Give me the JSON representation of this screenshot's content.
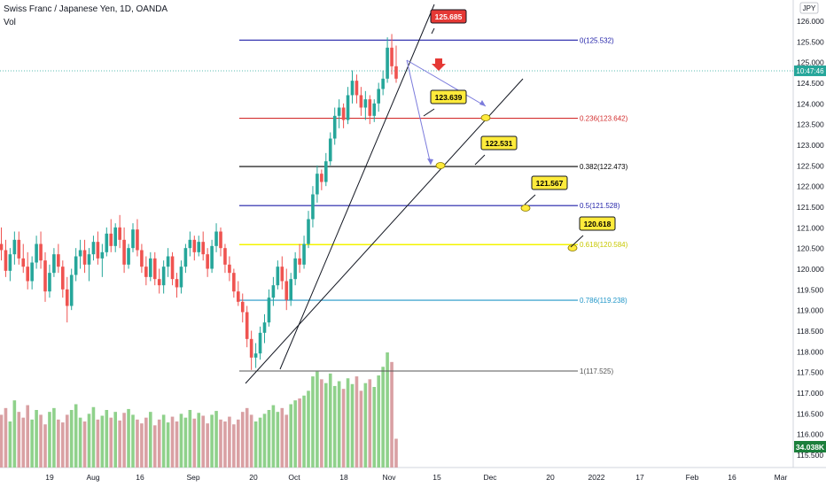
{
  "header": {
    "symbol_title": "Swiss Franc / Japanese Yen, 1D, OANDA",
    "volume_label": "Vol"
  },
  "axis": {
    "currency_label": "JPY",
    "current_time": "10:47:46",
    "volume_value": "34.038K"
  },
  "colors": {
    "up": "#26a69a",
    "down": "#ef5350",
    "vol_up": "#8fd18b",
    "vol_down": "#d9a0a3",
    "fib_0": "#1f1fa8",
    "fib_236": "#d32f2f",
    "fib_382": "#000000",
    "fib_5": "#1f1fa8",
    "fib_618": "#f4f400",
    "fib_786": "#2196c8",
    "fib_1": "#555555",
    "arrow": "#e53935",
    "callout_red": "#e53935",
    "callout_yellow": "#ffeb3b",
    "projection": "#7b7bdc"
  },
  "chart_data": {
    "type": "candlestick",
    "ylim": [
      115.35,
      126.3
    ],
    "y_ticks": [
      "126.000",
      "125.500",
      "125.000",
      "124.500",
      "124.000",
      "123.500",
      "123.000",
      "122.500",
      "122.000",
      "121.500",
      "121.000",
      "120.500",
      "120.000",
      "119.500",
      "119.000",
      "118.500",
      "118.000",
      "117.500",
      "117.000",
      "116.500",
      "116.000",
      "115.500"
    ],
    "x_ticks": [
      "19",
      "Aug",
      "16",
      "Sep",
      "20",
      "Oct",
      "18",
      "Nov",
      "15",
      "Dec",
      "20",
      "2022",
      "17",
      "Feb",
      "16",
      "Mar"
    ],
    "fib_levels": [
      {
        "label": "0(125.532)",
        "price": 125.532
      },
      {
        "label": "0.236(123.642)",
        "price": 123.642
      },
      {
        "label": "0.382(122.473)",
        "price": 122.473
      },
      {
        "label": "0.5(121.528)",
        "price": 121.528
      },
      {
        "label": "0.618(120.584)",
        "price": 120.584
      },
      {
        "label": "0.786(119.238)",
        "price": 119.238
      },
      {
        "label": "1(117.525)",
        "price": 117.525
      }
    ],
    "callouts": [
      "125.685",
      "123.639",
      "122.531",
      "121.567",
      "120.618"
    ],
    "candles": [
      {
        "o": 120.6,
        "h": 121.0,
        "l": 120.2,
        "c": 120.45
      },
      {
        "o": 120.45,
        "h": 120.7,
        "l": 119.8,
        "c": 119.95
      },
      {
        "o": 119.95,
        "h": 120.5,
        "l": 119.7,
        "c": 120.35
      },
      {
        "o": 120.35,
        "h": 120.9,
        "l": 120.1,
        "c": 120.7
      },
      {
        "o": 120.7,
        "h": 120.9,
        "l": 120.1,
        "c": 120.25
      },
      {
        "o": 120.25,
        "h": 120.6,
        "l": 119.9,
        "c": 120.05
      },
      {
        "o": 120.05,
        "h": 120.4,
        "l": 119.5,
        "c": 119.7
      },
      {
        "o": 119.7,
        "h": 120.3,
        "l": 119.5,
        "c": 120.15
      },
      {
        "o": 120.15,
        "h": 120.8,
        "l": 120.0,
        "c": 120.6
      },
      {
        "o": 120.6,
        "h": 120.9,
        "l": 120.0,
        "c": 120.2
      },
      {
        "o": 120.2,
        "h": 120.4,
        "l": 119.2,
        "c": 119.45
      },
      {
        "o": 119.45,
        "h": 120.1,
        "l": 119.3,
        "c": 119.9
      },
      {
        "o": 119.9,
        "h": 120.5,
        "l": 119.8,
        "c": 120.35
      },
      {
        "o": 120.35,
        "h": 120.6,
        "l": 119.9,
        "c": 120.05
      },
      {
        "o": 120.05,
        "h": 120.2,
        "l": 119.3,
        "c": 119.5
      },
      {
        "o": 119.5,
        "h": 119.8,
        "l": 118.7,
        "c": 119.1
      },
      {
        "o": 119.1,
        "h": 120.0,
        "l": 119.0,
        "c": 119.85
      },
      {
        "o": 119.85,
        "h": 120.5,
        "l": 119.7,
        "c": 120.3
      },
      {
        "o": 120.3,
        "h": 120.7,
        "l": 120.0,
        "c": 120.45
      },
      {
        "o": 120.45,
        "h": 120.7,
        "l": 119.9,
        "c": 120.1
      },
      {
        "o": 120.1,
        "h": 120.5,
        "l": 119.7,
        "c": 120.35
      },
      {
        "o": 120.35,
        "h": 120.8,
        "l": 120.2,
        "c": 120.65
      },
      {
        "o": 120.65,
        "h": 120.9,
        "l": 120.1,
        "c": 120.25
      },
      {
        "o": 120.25,
        "h": 120.6,
        "l": 119.8,
        "c": 120.4
      },
      {
        "o": 120.4,
        "h": 121.0,
        "l": 120.3,
        "c": 120.85
      },
      {
        "o": 120.85,
        "h": 121.2,
        "l": 120.4,
        "c": 120.55
      },
      {
        "o": 120.55,
        "h": 121.1,
        "l": 120.4,
        "c": 121.0
      },
      {
        "o": 121.0,
        "h": 121.3,
        "l": 120.5,
        "c": 120.7
      },
      {
        "o": 120.7,
        "h": 121.0,
        "l": 119.9,
        "c": 120.1
      },
      {
        "o": 120.1,
        "h": 120.6,
        "l": 120.0,
        "c": 120.5
      },
      {
        "o": 120.5,
        "h": 121.1,
        "l": 120.4,
        "c": 120.95
      },
      {
        "o": 120.95,
        "h": 121.2,
        "l": 120.3,
        "c": 120.45
      },
      {
        "o": 120.45,
        "h": 120.6,
        "l": 119.9,
        "c": 120.05
      },
      {
        "o": 120.05,
        "h": 120.3,
        "l": 119.6,
        "c": 119.8
      },
      {
        "o": 119.8,
        "h": 120.4,
        "l": 119.7,
        "c": 120.25
      },
      {
        "o": 120.25,
        "h": 120.4,
        "l": 119.6,
        "c": 119.75
      },
      {
        "o": 119.75,
        "h": 120.0,
        "l": 119.4,
        "c": 119.6
      },
      {
        "o": 119.6,
        "h": 120.2,
        "l": 119.4,
        "c": 120.05
      },
      {
        "o": 120.05,
        "h": 120.5,
        "l": 119.8,
        "c": 120.3
      },
      {
        "o": 120.3,
        "h": 120.4,
        "l": 119.6,
        "c": 119.75
      },
      {
        "o": 119.75,
        "h": 119.9,
        "l": 119.3,
        "c": 119.55
      },
      {
        "o": 119.55,
        "h": 120.2,
        "l": 119.4,
        "c": 120.05
      },
      {
        "o": 120.05,
        "h": 120.6,
        "l": 119.9,
        "c": 120.5
      },
      {
        "o": 120.5,
        "h": 120.9,
        "l": 120.3,
        "c": 120.7
      },
      {
        "o": 120.7,
        "h": 120.8,
        "l": 120.2,
        "c": 120.4
      },
      {
        "o": 120.4,
        "h": 120.8,
        "l": 120.3,
        "c": 120.65
      },
      {
        "o": 120.65,
        "h": 120.9,
        "l": 120.2,
        "c": 120.35
      },
      {
        "o": 120.35,
        "h": 120.5,
        "l": 119.8,
        "c": 120.0
      },
      {
        "o": 120.0,
        "h": 120.7,
        "l": 119.9,
        "c": 120.55
      },
      {
        "o": 120.55,
        "h": 121.1,
        "l": 120.4,
        "c": 120.9
      },
      {
        "o": 120.9,
        "h": 121.0,
        "l": 120.3,
        "c": 120.5
      },
      {
        "o": 120.5,
        "h": 120.6,
        "l": 119.9,
        "c": 120.1
      },
      {
        "o": 120.1,
        "h": 120.3,
        "l": 119.7,
        "c": 119.9
      },
      {
        "o": 119.9,
        "h": 120.0,
        "l": 119.3,
        "c": 119.45
      },
      {
        "o": 119.45,
        "h": 119.7,
        "l": 119.1,
        "c": 119.2
      },
      {
        "o": 119.2,
        "h": 119.4,
        "l": 118.7,
        "c": 118.95
      },
      {
        "o": 118.95,
        "h": 119.1,
        "l": 118.1,
        "c": 118.3
      },
      {
        "o": 118.3,
        "h": 118.5,
        "l": 117.55,
        "c": 117.85
      },
      {
        "o": 117.85,
        "h": 118.2,
        "l": 117.6,
        "c": 117.95
      },
      {
        "o": 117.95,
        "h": 118.6,
        "l": 117.8,
        "c": 118.45
      },
      {
        "o": 118.45,
        "h": 118.9,
        "l": 118.2,
        "c": 118.7
      },
      {
        "o": 118.7,
        "h": 119.5,
        "l": 118.6,
        "c": 119.3
      },
      {
        "o": 119.3,
        "h": 119.8,
        "l": 119.1,
        "c": 119.6
      },
      {
        "o": 119.6,
        "h": 120.2,
        "l": 119.5,
        "c": 120.05
      },
      {
        "o": 120.05,
        "h": 120.3,
        "l": 119.5,
        "c": 119.7
      },
      {
        "o": 119.7,
        "h": 120.0,
        "l": 119.0,
        "c": 119.25
      },
      {
        "o": 119.25,
        "h": 119.9,
        "l": 119.1,
        "c": 119.75
      },
      {
        "o": 119.75,
        "h": 120.4,
        "l": 119.6,
        "c": 120.25
      },
      {
        "o": 120.25,
        "h": 120.6,
        "l": 119.9,
        "c": 120.1
      },
      {
        "o": 120.1,
        "h": 120.8,
        "l": 120.0,
        "c": 120.6
      },
      {
        "o": 120.6,
        "h": 121.4,
        "l": 120.5,
        "c": 121.2
      },
      {
        "o": 121.2,
        "h": 122.0,
        "l": 121.0,
        "c": 121.8
      },
      {
        "o": 121.8,
        "h": 122.5,
        "l": 121.6,
        "c": 122.3
      },
      {
        "o": 122.3,
        "h": 122.4,
        "l": 121.9,
        "c": 122.1
      },
      {
        "o": 122.1,
        "h": 122.8,
        "l": 122.0,
        "c": 122.6
      },
      {
        "o": 122.6,
        "h": 123.3,
        "l": 122.5,
        "c": 123.15
      },
      {
        "o": 123.15,
        "h": 123.9,
        "l": 123.0,
        "c": 123.7
      },
      {
        "o": 123.7,
        "h": 124.1,
        "l": 123.4,
        "c": 123.9
      },
      {
        "o": 123.9,
        "h": 124.0,
        "l": 123.4,
        "c": 123.6
      },
      {
        "o": 123.6,
        "h": 124.4,
        "l": 123.5,
        "c": 124.2
      },
      {
        "o": 124.2,
        "h": 124.8,
        "l": 124.0,
        "c": 124.55
      },
      {
        "o": 124.55,
        "h": 124.7,
        "l": 124.0,
        "c": 124.2
      },
      {
        "o": 124.2,
        "h": 124.4,
        "l": 123.7,
        "c": 123.9
      },
      {
        "o": 123.9,
        "h": 124.3,
        "l": 123.6,
        "c": 124.1
      },
      {
        "o": 124.1,
        "h": 124.2,
        "l": 123.5,
        "c": 123.7
      },
      {
        "o": 123.7,
        "h": 124.1,
        "l": 123.55,
        "c": 124.0
      },
      {
        "o": 124.0,
        "h": 124.5,
        "l": 123.8,
        "c": 124.35
      },
      {
        "o": 124.35,
        "h": 124.8,
        "l": 124.2,
        "c": 124.6
      },
      {
        "o": 124.6,
        "h": 125.6,
        "l": 124.5,
        "c": 125.35
      },
      {
        "o": 125.35,
        "h": 125.68,
        "l": 124.7,
        "c": 124.9
      },
      {
        "o": 124.9,
        "h": 125.4,
        "l": 124.5,
        "c": 124.6
      }
    ],
    "volume": [
      0.55,
      0.62,
      0.48,
      0.7,
      0.58,
      0.52,
      0.65,
      0.5,
      0.6,
      0.55,
      0.45,
      0.58,
      0.62,
      0.5,
      0.47,
      0.55,
      0.6,
      0.66,
      0.52,
      0.48,
      0.56,
      0.63,
      0.5,
      0.54,
      0.6,
      0.52,
      0.58,
      0.49,
      0.57,
      0.61,
      0.55,
      0.5,
      0.46,
      0.52,
      0.58,
      0.44,
      0.5,
      0.55,
      0.47,
      0.53,
      0.48,
      0.56,
      0.52,
      0.6,
      0.51,
      0.57,
      0.54,
      0.46,
      0.55,
      0.59,
      0.5,
      0.48,
      0.53,
      0.45,
      0.5,
      0.58,
      0.62,
      0.55,
      0.48,
      0.52,
      0.56,
      0.6,
      0.65,
      0.58,
      0.62,
      0.55,
      0.66,
      0.7,
      0.72,
      0.75,
      0.8,
      0.95,
      1.0,
      0.92,
      0.88,
      0.98,
      0.85,
      0.9,
      0.82,
      0.93,
      0.87,
      0.95,
      0.8,
      0.88,
      0.92,
      0.84,
      0.96,
      1.05,
      1.2,
      1.1,
      0.3
    ]
  }
}
